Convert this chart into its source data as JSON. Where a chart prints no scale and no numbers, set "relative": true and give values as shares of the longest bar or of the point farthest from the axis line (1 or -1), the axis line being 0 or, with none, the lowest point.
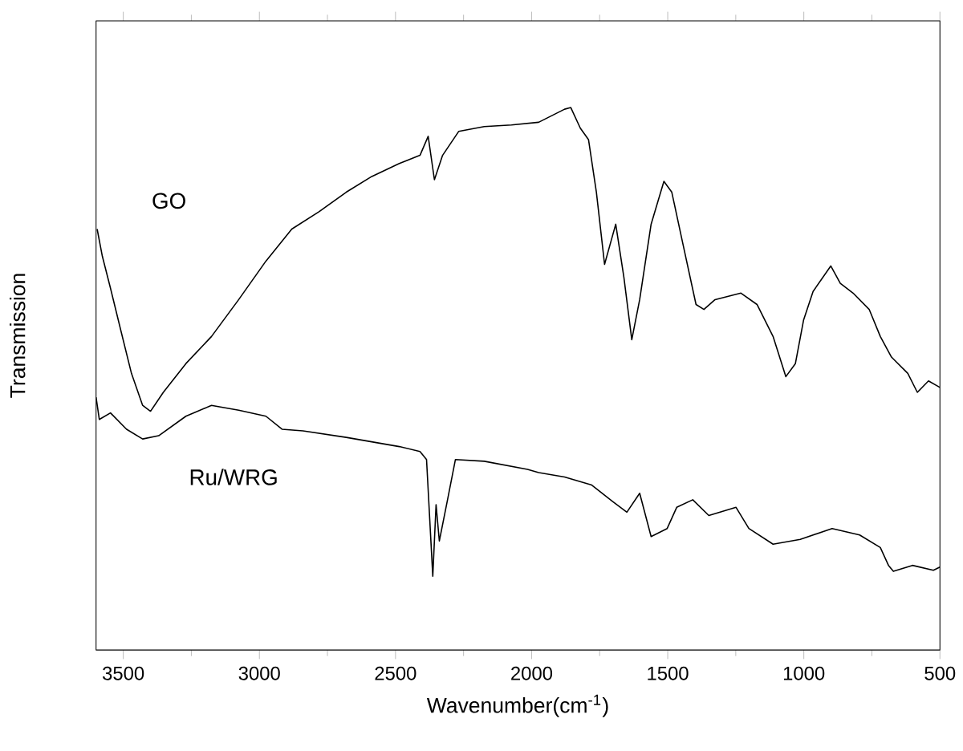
{
  "chart_data": {
    "type": "line",
    "relative": true,
    "xlabel": "Wavenumber(cm$^{-1}$)",
    "ylabel": "Transmission",
    "xlim": [
      3600,
      500
    ],
    "xticks": [
      3500,
      3000,
      2500,
      2000,
      1500,
      1000,
      500
    ],
    "marker": "none",
    "line_style": "solid",
    "series": [
      {
        "name": "GO",
        "color": "#000000",
        "x": [
          3596,
          3577,
          3547,
          3508,
          3470,
          3429,
          3400,
          3353,
          3270,
          3176,
          3076,
          2976,
          2881,
          2781,
          2681,
          2587,
          2486,
          2410,
          2380,
          2357,
          2327,
          2268,
          2174,
          2074,
          1974,
          1879,
          1856,
          1821,
          1791,
          1762,
          1732,
          1691,
          1661,
          1632,
          1603,
          1561,
          1514,
          1485,
          1443,
          1396,
          1367,
          1326,
          1231,
          1172,
          1113,
          1066,
          1031,
          1001,
          966,
          901,
          866,
          819,
          760,
          719,
          678,
          618,
          583,
          542,
          500
        ],
        "values": [
          0.776,
          0.726,
          0.667,
          0.587,
          0.51,
          0.451,
          0.44,
          0.475,
          0.528,
          0.578,
          0.646,
          0.717,
          0.776,
          0.808,
          0.844,
          0.873,
          0.897,
          0.912,
          0.947,
          0.867,
          0.912,
          0.956,
          0.965,
          0.968,
          0.973,
          0.997,
          1.0,
          0.962,
          0.941,
          0.844,
          0.711,
          0.785,
          0.687,
          0.572,
          0.646,
          0.785,
          0.864,
          0.844,
          0.746,
          0.637,
          0.628,
          0.646,
          0.658,
          0.637,
          0.578,
          0.504,
          0.528,
          0.608,
          0.661,
          0.708,
          0.676,
          0.658,
          0.628,
          0.578,
          0.54,
          0.51,
          0.475,
          0.496,
          0.484
        ]
      },
      {
        "name": "Ru/WRG",
        "color": "#000000",
        "x": [
          3600,
          3588,
          3547,
          3488,
          3429,
          3370,
          3270,
          3176,
          3076,
          2976,
          2917,
          2840,
          2681,
          2486,
          2410,
          2386,
          2363,
          2351,
          2339,
          2310,
          2280,
          2174,
          2015,
          1974,
          1879,
          1779,
          1703,
          1650,
          1603,
          1561,
          1502,
          1467,
          1408,
          1349,
          1249,
          1202,
          1113,
          1013,
          896,
          795,
          719,
          689,
          671,
          601,
          524,
          500
        ],
        "values": [
          0.466,
          0.425,
          0.437,
          0.407,
          0.389,
          0.395,
          0.431,
          0.451,
          0.442,
          0.431,
          0.407,
          0.404,
          0.392,
          0.375,
          0.366,
          0.351,
          0.136,
          0.268,
          0.201,
          0.274,
          0.351,
          0.348,
          0.333,
          0.327,
          0.319,
          0.304,
          0.274,
          0.254,
          0.289,
          0.209,
          0.224,
          0.263,
          0.277,
          0.248,
          0.263,
          0.224,
          0.195,
          0.204,
          0.224,
          0.212,
          0.189,
          0.156,
          0.145,
          0.156,
          0.147,
          0.153
        ]
      }
    ]
  }
}
